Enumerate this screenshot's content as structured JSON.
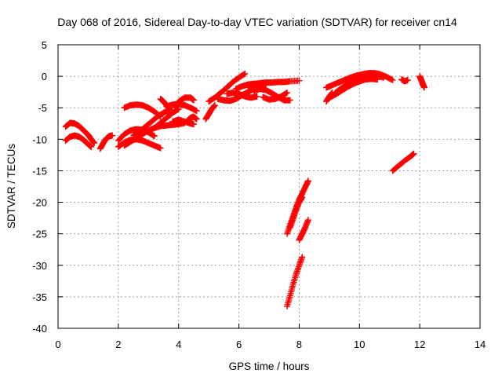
{
  "chart_data": {
    "type": "scatter",
    "title": "Day 068 of 2016, Sidereal Day-to-day VTEC variation (SDTVAR) for receiver cn14",
    "xlabel": "GPS time / hours",
    "ylabel": "SDTVAR / TECUs",
    "xlim": [
      0,
      14
    ],
    "ylim": [
      -40,
      5
    ],
    "xticks": [
      0,
      2,
      4,
      6,
      8,
      10,
      12,
      14
    ],
    "yticks": [
      5,
      0,
      -5,
      -10,
      -15,
      -20,
      -25,
      -30,
      -35,
      -40
    ],
    "grid": true,
    "marker": "plus",
    "color": "#ff0000",
    "tracks": [
      {
        "x": [
          0.25,
          0.4,
          0.55,
          0.7,
          0.85,
          1.0,
          1.1,
          1.2
        ],
        "y": [
          -8.0,
          -7.4,
          -7.5,
          -7.9,
          -8.6,
          -9.3,
          -10.0,
          -10.6
        ]
      },
      {
        "x": [
          0.25,
          0.4,
          0.55,
          0.7,
          0.85,
          1.0,
          1.1
        ],
        "y": [
          -10.2,
          -9.6,
          -9.4,
          -9.6,
          -10.1,
          -10.8,
          -11.2
        ]
      },
      {
        "x": [
          1.4,
          1.5,
          1.6,
          1.7,
          1.8
        ],
        "y": [
          -11.5,
          -10.6,
          -9.9,
          -9.5,
          -9.4
        ]
      },
      {
        "x": [
          2.0,
          2.2,
          2.4,
          2.6,
          2.8,
          3.0,
          3.2,
          3.4
        ],
        "y": [
          -11.2,
          -10.5,
          -10.1,
          -10.0,
          -10.2,
          -10.6,
          -11.0,
          -11.4
        ]
      },
      {
        "x": [
          2.0,
          2.2,
          2.4,
          2.6,
          2.8,
          3.0,
          3.2
        ],
        "y": [
          -10.2,
          -9.2,
          -8.6,
          -8.4,
          -8.5,
          -8.9,
          -9.5
        ]
      },
      {
        "x": [
          2.2,
          2.4,
          2.6,
          2.8,
          3.0,
          3.2,
          3.4,
          3.6,
          3.8,
          4.0,
          4.2
        ],
        "y": [
          -11.0,
          -10.4,
          -9.8,
          -9.2,
          -8.6,
          -8.2,
          -7.9,
          -7.8,
          -7.7,
          -7.6,
          -7.4
        ]
      },
      {
        "x": [
          2.2,
          2.4,
          2.6,
          2.8,
          3.0,
          3.2,
          3.4
        ],
        "y": [
          -5.0,
          -4.6,
          -4.5,
          -4.6,
          -5.0,
          -5.6,
          -6.4
        ]
      },
      {
        "x": [
          2.5,
          2.7,
          2.9,
          3.1,
          3.3,
          3.5,
          3.7
        ],
        "y": [
          -9.4,
          -8.8,
          -8.0,
          -7.2,
          -6.4,
          -5.8,
          -5.3
        ]
      },
      {
        "x": [
          3.2,
          3.4,
          3.6,
          3.8,
          4.0
        ],
        "y": [
          -8.2,
          -7.4,
          -6.6,
          -5.8,
          -5.2
        ]
      },
      {
        "x": [
          3.6,
          3.8,
          4.0,
          4.2,
          4.4,
          4.6
        ],
        "y": [
          -4.8,
          -4.5,
          -4.4,
          -4.6,
          -5.0,
          -5.5
        ]
      },
      {
        "x": [
          3.4,
          3.5,
          3.6,
          3.7
        ],
        "y": [
          -3.6,
          -4.0,
          -4.6,
          -5.2
        ]
      },
      {
        "x": [
          3.9,
          4.0,
          4.2,
          4.4,
          4.5
        ],
        "y": [
          -5.0,
          -4.0,
          -3.4,
          -3.4,
          -3.8
        ]
      },
      {
        "x": [
          3.8,
          4.0,
          4.2,
          4.4,
          4.5
        ],
        "y": [
          -7.2,
          -6.9,
          -7.2,
          -7.5,
          -7.6
        ]
      },
      {
        "x": [
          4.3,
          4.4,
          4.5,
          4.6
        ],
        "y": [
          -7.0,
          -6.6,
          -6.4,
          -6.8
        ]
      },
      {
        "x": [
          4.9,
          5.0,
          5.1,
          5.2
        ],
        "y": [
          -6.8,
          -6.0,
          -5.2,
          -4.6
        ]
      },
      {
        "x": [
          5.0,
          5.2,
          5.4,
          5.6,
          5.8,
          6.0,
          6.2
        ],
        "y": [
          -4.0,
          -3.4,
          -2.6,
          -1.8,
          -0.9,
          -0.2,
          0.4
        ]
      },
      {
        "x": [
          5.3,
          5.5,
          5.7,
          5.9,
          6.1,
          6.3,
          6.5,
          6.7,
          6.9
        ],
        "y": [
          -3.6,
          -3.8,
          -3.9,
          -3.6,
          -3.0,
          -2.5,
          -2.0,
          -1.6,
          -1.2
        ]
      },
      {
        "x": [
          5.6,
          5.8,
          6.0,
          6.2,
          6.4,
          6.6
        ],
        "y": [
          -2.8,
          -2.6,
          -2.8,
          -3.2,
          -3.4,
          -3.2
        ]
      },
      {
        "x": [
          5.9,
          6.1,
          6.3,
          6.5
        ],
        "y": [
          -2.0,
          -1.6,
          -1.3,
          -1.2
        ]
      },
      {
        "x": [
          6.3,
          6.5,
          6.7,
          6.9,
          7.1,
          7.3,
          7.5,
          7.7,
          8.0
        ],
        "y": [
          -1.5,
          -1.2,
          -1.1,
          -1.0,
          -1.0,
          -0.9,
          -0.9,
          -0.8,
          -0.7
        ]
      },
      {
        "x": [
          6.5,
          6.7,
          6.9,
          7.1,
          7.3,
          7.5,
          7.7
        ],
        "y": [
          -2.3,
          -2.0,
          -2.2,
          -2.7,
          -3.3,
          -3.8,
          -3.8
        ]
      },
      {
        "x": [
          6.8,
          7.0,
          7.2,
          7.4,
          7.6
        ],
        "y": [
          -3.3,
          -3.7,
          -3.6,
          -3.2,
          -2.6
        ]
      },
      {
        "x": [
          7.6,
          7.7,
          7.8,
          7.9,
          8.0,
          8.1,
          8.2,
          8.3
        ],
        "y": [
          -25.0,
          -23.6,
          -22.2,
          -20.8,
          -19.6,
          -18.6,
          -17.6,
          -16.6
        ]
      },
      {
        "x": [
          7.7,
          7.8,
          7.9,
          8.0,
          8.1
        ],
        "y": [
          -24.0,
          -22.6,
          -21.2,
          -20.0,
          -19.2
        ]
      },
      {
        "x": [
          8.0,
          8.1,
          8.2,
          8.3
        ],
        "y": [
          -26.0,
          -25.0,
          -24.0,
          -22.8
        ]
      },
      {
        "x": [
          7.6,
          7.7,
          7.8,
          7.9,
          8.0,
          8.1
        ],
        "y": [
          -36.5,
          -34.8,
          -33.0,
          -31.4,
          -30.0,
          -28.7
        ]
      },
      {
        "x": [
          8.9,
          9.0,
          9.1
        ],
        "y": [
          -4.0,
          -3.2,
          -2.6
        ]
      },
      {
        "x": [
          8.9,
          9.1,
          9.3,
          9.5,
          9.7,
          9.9,
          10.1,
          10.3,
          10.5,
          10.7,
          10.9,
          11.1
        ],
        "y": [
          -1.8,
          -1.4,
          -1.0,
          -0.6,
          -0.2,
          0.1,
          0.3,
          0.5,
          0.5,
          0.3,
          -0.1,
          -0.6
        ]
      },
      {
        "x": [
          9.2,
          9.4,
          9.6,
          9.8,
          10.0,
          10.2,
          10.4,
          10.6,
          10.8
        ],
        "y": [
          -2.6,
          -1.9,
          -1.3,
          -0.7,
          -0.2,
          0.1,
          0.2,
          0.1,
          -0.2
        ]
      },
      {
        "x": [
          9.0,
          9.2,
          9.4,
          9.6,
          9.8,
          10.0,
          10.2,
          10.4,
          10.6
        ],
        "y": [
          -3.4,
          -2.9,
          -2.3,
          -1.7,
          -1.2,
          -0.8,
          -0.5,
          -0.4,
          -0.5
        ]
      },
      {
        "x": [
          9.6,
          9.8,
          10.0,
          10.2,
          10.4
        ],
        "y": [
          -0.8,
          -0.5,
          -0.3,
          -0.2,
          -0.3
        ]
      },
      {
        "x": [
          11.4,
          11.5,
          11.6
        ],
        "y": [
          -0.5,
          -0.8,
          -0.6
        ]
      },
      {
        "x": [
          12.0,
          12.05,
          12.1,
          12.15
        ],
        "y": [
          0.0,
          -0.6,
          -1.2,
          -1.8
        ]
      },
      {
        "x": [
          11.1,
          11.3,
          11.5,
          11.7,
          11.8
        ],
        "y": [
          -15.0,
          -14.2,
          -13.4,
          -12.7,
          -12.3
        ]
      }
    ]
  }
}
